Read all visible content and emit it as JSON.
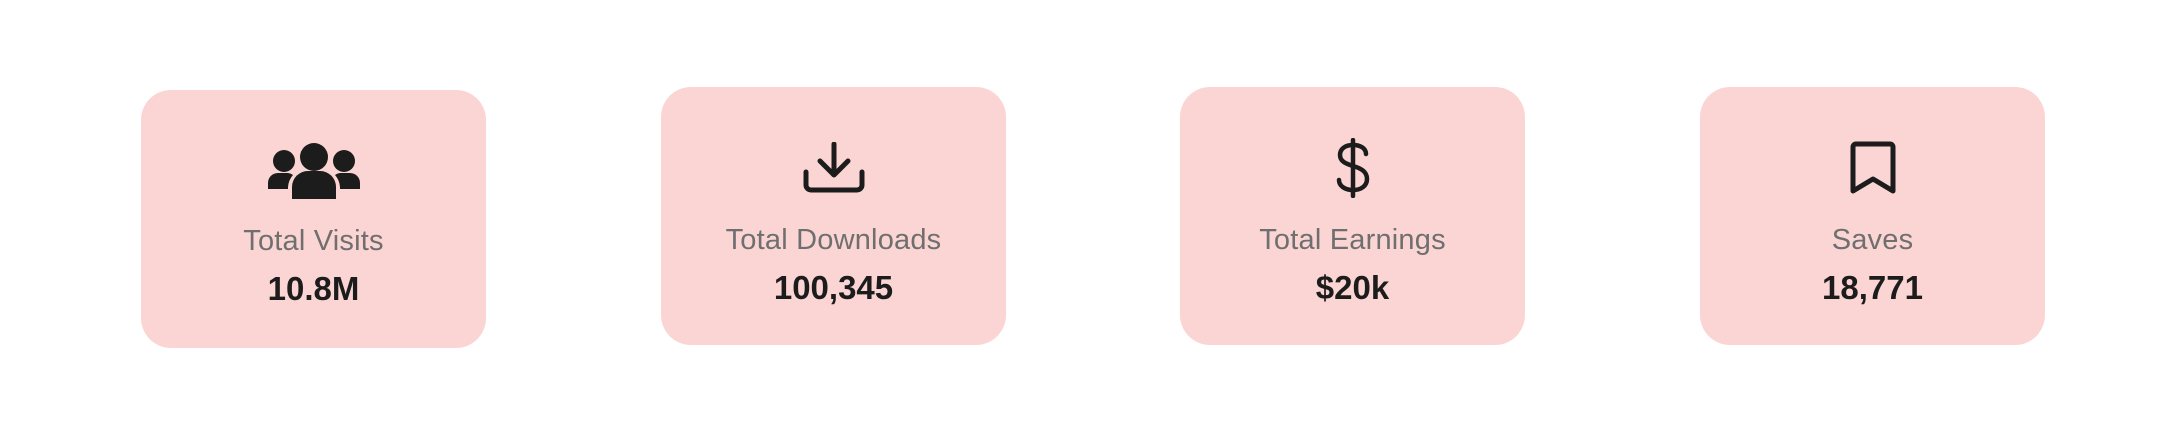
{
  "cards": [
    {
      "icon": "users-group-icon",
      "label": "Total Visits",
      "value": "10.8M"
    },
    {
      "icon": "download-icon",
      "label": "Total Downloads",
      "value": "100,345"
    },
    {
      "icon": "dollar-icon",
      "label": "Total Earnings",
      "value": "$20k"
    },
    {
      "icon": "bookmark-icon",
      "label": "Saves",
      "value": "18,771"
    }
  ],
  "colors": {
    "card_background": "#fbd5d3",
    "label": "#6f6f6f",
    "value": "#1c1c1c",
    "icon": "#1c1c1c"
  }
}
